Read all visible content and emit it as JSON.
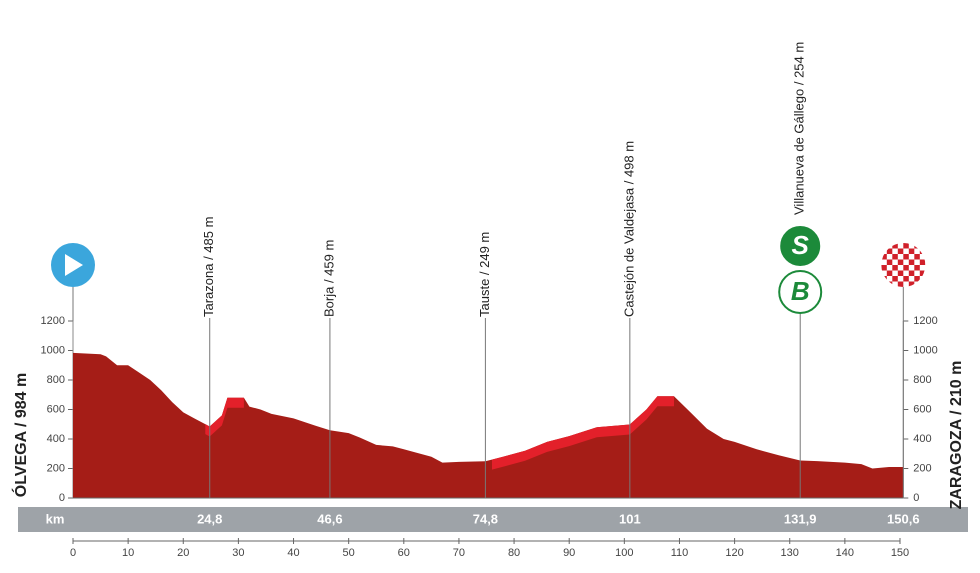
{
  "chart_data": {
    "type": "area",
    "color": "#a51d17",
    "highlight_color": "#e3202a",
    "x": [
      0,
      5,
      6,
      8,
      10,
      12,
      14,
      16,
      18,
      20,
      22,
      24.8,
      27,
      28,
      30,
      31,
      32,
      34,
      36,
      40,
      44,
      46.6,
      50,
      52,
      55,
      58,
      60,
      62,
      65,
      67,
      70,
      74.8,
      78,
      82,
      86,
      90,
      95,
      101,
      104,
      106,
      109,
      112,
      115,
      118,
      120,
      124,
      128,
      131.9,
      135,
      140,
      143,
      145,
      148,
      150.6
    ],
    "values": [
      984,
      975,
      960,
      900,
      900,
      850,
      800,
      730,
      650,
      580,
      540,
      485,
      560,
      680,
      680,
      680,
      620,
      600,
      570,
      540,
      490,
      459,
      440,
      410,
      360,
      350,
      330,
      310,
      280,
      240,
      245,
      249,
      280,
      320,
      380,
      420,
      480,
      498,
      600,
      690,
      690,
      580,
      470,
      400,
      380,
      330,
      290,
      254,
      250,
      240,
      230,
      200,
      210,
      210
    ],
    "highlights": [
      {
        "from": 24,
        "to": 31
      },
      {
        "from": 76,
        "to": 109
      }
    ],
    "xlim": [
      0,
      150.6
    ],
    "xticks": [
      0,
      10,
      20,
      30,
      40,
      50,
      60,
      70,
      80,
      90,
      100,
      110,
      120,
      130,
      140,
      150
    ],
    "ylim": [
      0,
      1200
    ],
    "yticks": [
      0,
      200,
      400,
      600,
      800,
      1000,
      1200
    ],
    "km_label": "km",
    "start": "ÓLVEGA / 984 m",
    "finish": "ZARAGOZA / 210 m",
    "finish_km": {
      "value": 150.6,
      "label": "150,6"
    },
    "waypoints": [
      {
        "name": "Tarazona / 485 m",
        "km": {
          "value": 24.8,
          "label": "24,8"
        }
      },
      {
        "name": "Borja / 459 m",
        "km": {
          "value": 46.6,
          "label": "46,6"
        }
      },
      {
        "name": "Tauste / 249 m",
        "km": {
          "value": 74.8,
          "label": "74,8"
        }
      },
      {
        "name": "Castejón de Valdejasa / 498 m",
        "km": {
          "value": 101,
          "label": "101"
        }
      },
      {
        "name": "Villanueva de Gállego / 254 m",
        "km": {
          "value": 131.9,
          "label": "131,9"
        },
        "icons": [
          "S",
          "B"
        ]
      }
    ]
  }
}
